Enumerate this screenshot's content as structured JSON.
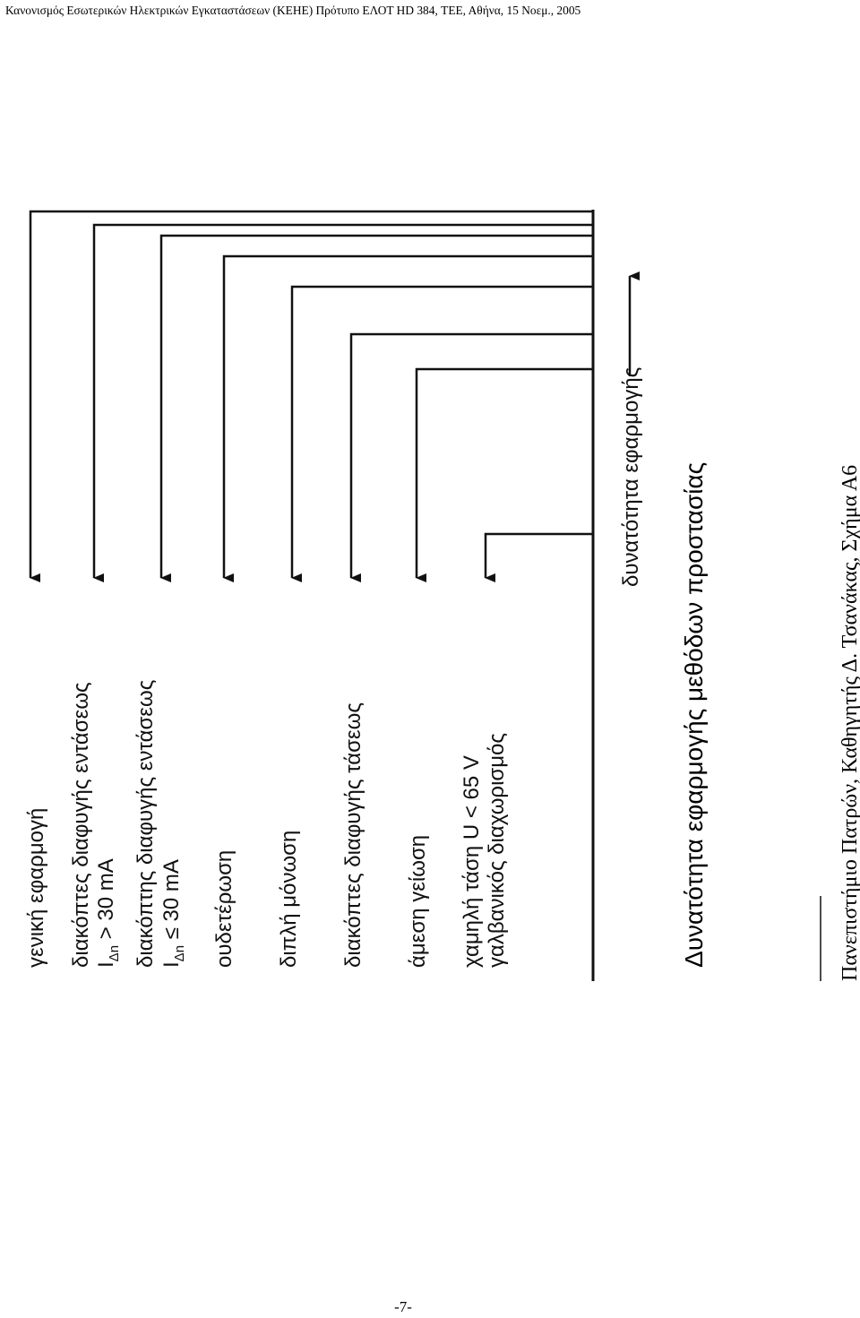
{
  "header": {
    "text": "Κανονισμός Εσωτερικών Ηλεκτρικών Εγκαταστάσεων (ΚΕΗΕ) Πρότυπο ΕΛΟΤ HD 384, ΤΕΕ, Αθήνα, 15 Νοεμ., 2005"
  },
  "figure": {
    "labels": [
      {
        "id": "general",
        "text": "γενική εφαρμογή"
      },
      {
        "id": "rcd-high-1",
        "text": "διακόπτες διαφυγής εντάσεως"
      },
      {
        "id": "rcd-high-2",
        "text": "I",
        "sub": "Δn",
        "rest": " > 30 mA"
      },
      {
        "id": "rcd-low-1",
        "text": "διακόπτης διαφυγής εντάσεως"
      },
      {
        "id": "rcd-low-2",
        "text": "I",
        "sub": "Δn",
        "rest": " ≤ 30 mA"
      },
      {
        "id": "neutral",
        "text": "ουδετέρωση"
      },
      {
        "id": "double-insulation",
        "text": "διπλή μόνωση"
      },
      {
        "id": "voltage-breakers",
        "text": "διακόπτες διαφυγής τάσεως"
      },
      {
        "id": "direct-earth",
        "text": "άμεση γείωση"
      },
      {
        "id": "low-voltage-1",
        "text": "χαμηλή τάση U < 65 V"
      },
      {
        "id": "low-voltage-2",
        "text": "γαλβανικός διαχωρισμός"
      }
    ],
    "axis_label": "δυνατότητα εφαρμογής",
    "caption": "Δυνατότητα εφαρμογής μεθόδων προστασίας",
    "credit": "Πανεπιστήμιο Πατρών, Καθηγητής Δ. Τσανάκας, Σχήμα Α6"
  },
  "footer": {
    "page_number": "-7-"
  }
}
